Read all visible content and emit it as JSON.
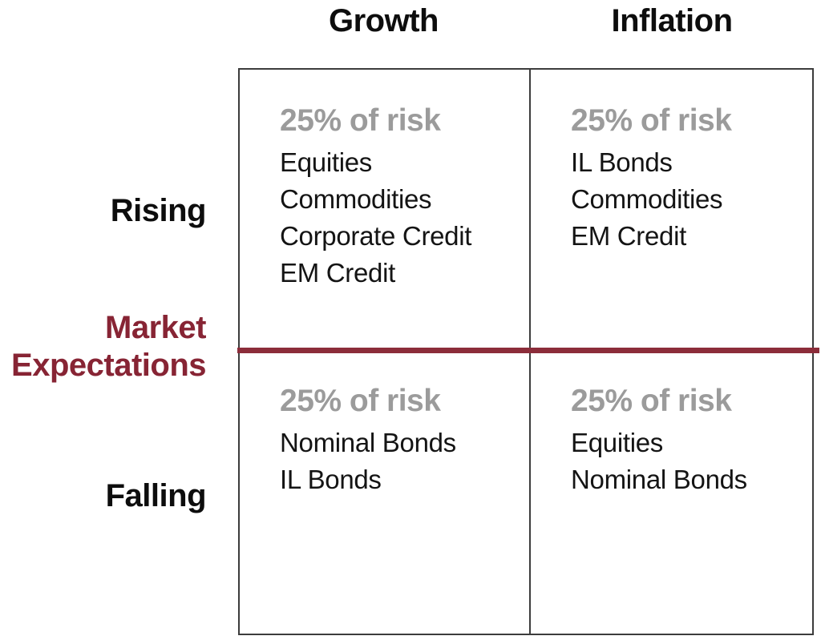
{
  "headers": {
    "growth": "Growth",
    "inflation": "Inflation"
  },
  "axis": {
    "label_line1": "Market",
    "label_line2": "Expectations",
    "rising": "Rising",
    "falling": "Falling"
  },
  "quadrants": {
    "rising_growth": {
      "risk": "25% of risk",
      "assets": [
        "Equities",
        "Commodities",
        "Corporate Credit",
        "EM Credit"
      ]
    },
    "rising_inflation": {
      "risk": "25% of risk",
      "assets": [
        "IL Bonds",
        "Commodities",
        "EM Credit"
      ]
    },
    "falling_growth": {
      "risk": "25% of risk",
      "assets": [
        "Nominal Bonds",
        "IL Bonds"
      ]
    },
    "falling_inflation": {
      "risk": "25% of risk",
      "assets": [
        "Equities",
        "Nominal Bonds"
      ]
    }
  },
  "colors": {
    "maroon_text": "#872434",
    "divider_line": "#8c2d3a",
    "risk_gray": "#9b9b9b",
    "body_black": "#141414",
    "border_gray": "#3c3c3c"
  }
}
